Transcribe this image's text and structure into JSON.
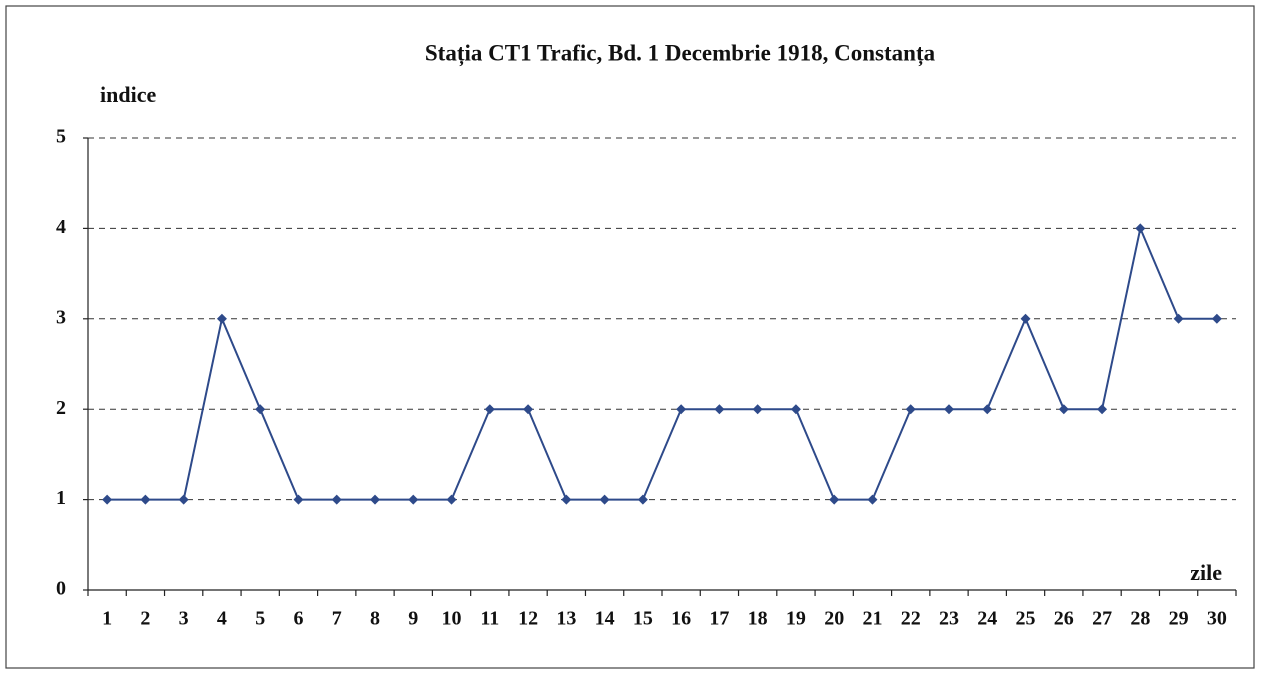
{
  "chart_data": {
    "type": "line",
    "title": "Stația CT1 Trafic, Bd. 1 Decembrie 1918, Constanța",
    "y_label": "indice",
    "x_label": "zile",
    "categories": [
      1,
      2,
      3,
      4,
      5,
      6,
      7,
      8,
      9,
      10,
      11,
      12,
      13,
      14,
      15,
      16,
      17,
      18,
      19,
      20,
      21,
      22,
      23,
      24,
      25,
      26,
      27,
      28,
      29,
      30
    ],
    "series": [
      {
        "color": "#2e4a8a",
        "values": [
          1,
          1,
          1,
          3,
          2,
          1,
          1,
          1,
          1,
          1,
          2,
          2,
          1,
          1,
          1,
          2,
          2,
          2,
          2,
          1,
          1,
          2,
          2,
          2,
          3,
          2,
          2,
          4,
          3,
          3
        ]
      }
    ],
    "ylim": [
      0,
      5
    ],
    "yticks": [
      0,
      1,
      2,
      3,
      4,
      5
    ],
    "grid": true
  }
}
